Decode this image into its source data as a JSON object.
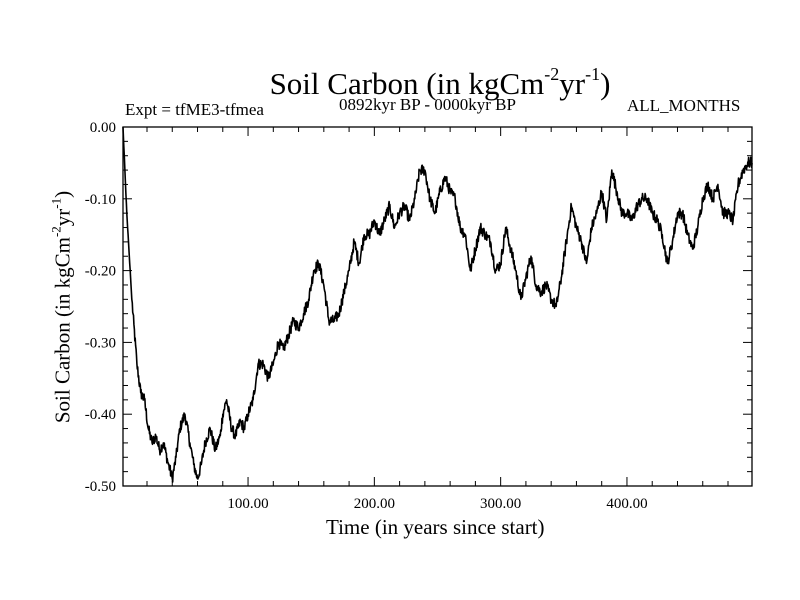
{
  "chart_data": {
    "type": "line",
    "title": {
      "base": "Soil Carbon (in kgCm",
      "exp1": "-2",
      "mid": "yr",
      "exp2": "-1",
      "end": ")"
    },
    "subtitle_left": "Expt = tfME3-tfmea",
    "subtitle_center": "0892kyr BP - 0000kyr BP",
    "subtitle_right": "ALL_MONTHS",
    "xlabel": "Time (in years since start)",
    "ylabel": {
      "base": "Soil Carbon (in kgCm",
      "exp1": "-2",
      "mid": "yr",
      "exp2": "-1",
      "end": ")"
    },
    "xlim": [
      1,
      499
    ],
    "ylim": [
      -0.5,
      0.0
    ],
    "xticks": [
      100,
      200,
      300,
      400
    ],
    "xtick_labels": [
      "100.00",
      "200.00",
      "300.00",
      "400.00"
    ],
    "yticks": [
      0.0,
      -0.1,
      -0.2,
      -0.3,
      -0.4,
      -0.5
    ],
    "ytick_labels": [
      "0.00",
      "-0.10",
      "-0.20",
      "-0.30",
      "-0.40",
      "-0.50"
    ],
    "line_color": "#000000",
    "series": [
      {
        "name": "Soil Carbon",
        "x": [
          1,
          4,
          8,
          12,
          15,
          18,
          21,
          24,
          27,
          30,
          33,
          37,
          40,
          43,
          46,
          50,
          54,
          57,
          60,
          63,
          66,
          70,
          74,
          78,
          80,
          83,
          87,
          90,
          94,
          97,
          100,
          104,
          108,
          112,
          116,
          120,
          124,
          128,
          132,
          136,
          140,
          144,
          148,
          152,
          156,
          160,
          164,
          168,
          172,
          176,
          180,
          184,
          188,
          192,
          196,
          200,
          204,
          208,
          212,
          216,
          220,
          224,
          228,
          232,
          236,
          240,
          244,
          248,
          252,
          256,
          260,
          264,
          268,
          272,
          276,
          280,
          284,
          288,
          292,
          296,
          300,
          304,
          308,
          312,
          316,
          320,
          324,
          328,
          332,
          336,
          340,
          344,
          348,
          352,
          356,
          360,
          364,
          368,
          372,
          376,
          380,
          384,
          388,
          392,
          396,
          400,
          404,
          408,
          412,
          416,
          420,
          424,
          428,
          432,
          436,
          440,
          444,
          448,
          452,
          456,
          460,
          464,
          468,
          472,
          476,
          480,
          484,
          488,
          492,
          496,
          499
        ],
        "values": [
          0.0,
          -0.12,
          -0.24,
          -0.33,
          -0.37,
          -0.38,
          -0.42,
          -0.44,
          -0.43,
          -0.45,
          -0.44,
          -0.47,
          -0.49,
          -0.46,
          -0.42,
          -0.4,
          -0.44,
          -0.47,
          -0.49,
          -0.47,
          -0.44,
          -0.42,
          -0.45,
          -0.43,
          -0.4,
          -0.38,
          -0.42,
          -0.43,
          -0.41,
          -0.42,
          -0.4,
          -0.38,
          -0.33,
          -0.33,
          -0.35,
          -0.33,
          -0.3,
          -0.31,
          -0.29,
          -0.27,
          -0.28,
          -0.26,
          -0.24,
          -0.2,
          -0.19,
          -0.22,
          -0.27,
          -0.27,
          -0.26,
          -0.23,
          -0.2,
          -0.16,
          -0.19,
          -0.15,
          -0.15,
          -0.13,
          -0.15,
          -0.13,
          -0.11,
          -0.14,
          -0.12,
          -0.11,
          -0.13,
          -0.1,
          -0.06,
          -0.06,
          -0.1,
          -0.12,
          -0.09,
          -0.07,
          -0.09,
          -0.1,
          -0.14,
          -0.15,
          -0.2,
          -0.17,
          -0.14,
          -0.15,
          -0.16,
          -0.2,
          -0.19,
          -0.14,
          -0.17,
          -0.2,
          -0.24,
          -0.21,
          -0.18,
          -0.22,
          -0.23,
          -0.22,
          -0.24,
          -0.25,
          -0.21,
          -0.16,
          -0.11,
          -0.14,
          -0.16,
          -0.19,
          -0.14,
          -0.12,
          -0.09,
          -0.13,
          -0.06,
          -0.09,
          -0.12,
          -0.12,
          -0.13,
          -0.11,
          -0.1,
          -0.1,
          -0.12,
          -0.13,
          -0.15,
          -0.19,
          -0.16,
          -0.12,
          -0.12,
          -0.15,
          -0.17,
          -0.14,
          -0.1,
          -0.08,
          -0.1,
          -0.08,
          -0.12,
          -0.12,
          -0.13,
          -0.08,
          -0.06,
          -0.05,
          -0.05
        ]
      }
    ]
  }
}
